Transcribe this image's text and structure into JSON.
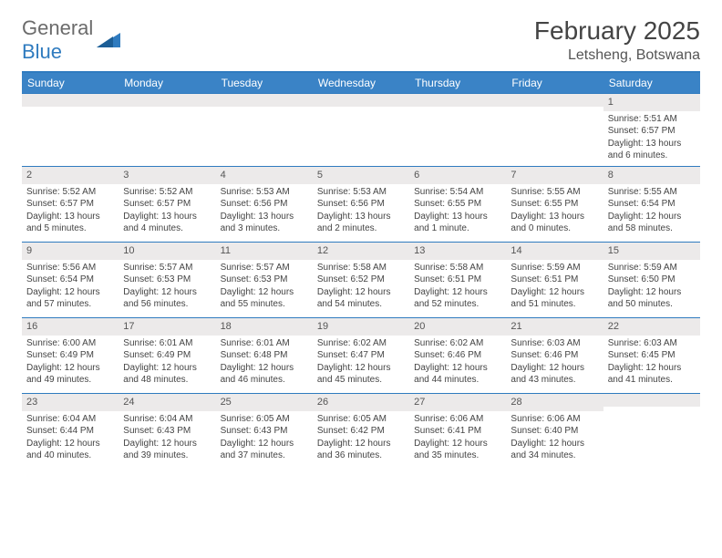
{
  "brand": {
    "name1": "General",
    "name2": "Blue"
  },
  "title": "February 2025",
  "location": "Letsheng, Botswana",
  "colors": {
    "header_bg": "#3a83c6",
    "border": "#2f7bbf",
    "daynum_bg": "#eceaea",
    "text": "#444444"
  },
  "day_names": [
    "Sunday",
    "Monday",
    "Tuesday",
    "Wednesday",
    "Thursday",
    "Friday",
    "Saturday"
  ],
  "weeks": [
    [
      null,
      null,
      null,
      null,
      null,
      null,
      {
        "n": "1",
        "sr": "Sunrise: 5:51 AM",
        "ss": "Sunset: 6:57 PM",
        "dl": "Daylight: 13 hours and 6 minutes."
      }
    ],
    [
      {
        "n": "2",
        "sr": "Sunrise: 5:52 AM",
        "ss": "Sunset: 6:57 PM",
        "dl": "Daylight: 13 hours and 5 minutes."
      },
      {
        "n": "3",
        "sr": "Sunrise: 5:52 AM",
        "ss": "Sunset: 6:57 PM",
        "dl": "Daylight: 13 hours and 4 minutes."
      },
      {
        "n": "4",
        "sr": "Sunrise: 5:53 AM",
        "ss": "Sunset: 6:56 PM",
        "dl": "Daylight: 13 hours and 3 minutes."
      },
      {
        "n": "5",
        "sr": "Sunrise: 5:53 AM",
        "ss": "Sunset: 6:56 PM",
        "dl": "Daylight: 13 hours and 2 minutes."
      },
      {
        "n": "6",
        "sr": "Sunrise: 5:54 AM",
        "ss": "Sunset: 6:55 PM",
        "dl": "Daylight: 13 hours and 1 minute."
      },
      {
        "n": "7",
        "sr": "Sunrise: 5:55 AM",
        "ss": "Sunset: 6:55 PM",
        "dl": "Daylight: 13 hours and 0 minutes."
      },
      {
        "n": "8",
        "sr": "Sunrise: 5:55 AM",
        "ss": "Sunset: 6:54 PM",
        "dl": "Daylight: 12 hours and 58 minutes."
      }
    ],
    [
      {
        "n": "9",
        "sr": "Sunrise: 5:56 AM",
        "ss": "Sunset: 6:54 PM",
        "dl": "Daylight: 12 hours and 57 minutes."
      },
      {
        "n": "10",
        "sr": "Sunrise: 5:57 AM",
        "ss": "Sunset: 6:53 PM",
        "dl": "Daylight: 12 hours and 56 minutes."
      },
      {
        "n": "11",
        "sr": "Sunrise: 5:57 AM",
        "ss": "Sunset: 6:53 PM",
        "dl": "Daylight: 12 hours and 55 minutes."
      },
      {
        "n": "12",
        "sr": "Sunrise: 5:58 AM",
        "ss": "Sunset: 6:52 PM",
        "dl": "Daylight: 12 hours and 54 minutes."
      },
      {
        "n": "13",
        "sr": "Sunrise: 5:58 AM",
        "ss": "Sunset: 6:51 PM",
        "dl": "Daylight: 12 hours and 52 minutes."
      },
      {
        "n": "14",
        "sr": "Sunrise: 5:59 AM",
        "ss": "Sunset: 6:51 PM",
        "dl": "Daylight: 12 hours and 51 minutes."
      },
      {
        "n": "15",
        "sr": "Sunrise: 5:59 AM",
        "ss": "Sunset: 6:50 PM",
        "dl": "Daylight: 12 hours and 50 minutes."
      }
    ],
    [
      {
        "n": "16",
        "sr": "Sunrise: 6:00 AM",
        "ss": "Sunset: 6:49 PM",
        "dl": "Daylight: 12 hours and 49 minutes."
      },
      {
        "n": "17",
        "sr": "Sunrise: 6:01 AM",
        "ss": "Sunset: 6:49 PM",
        "dl": "Daylight: 12 hours and 48 minutes."
      },
      {
        "n": "18",
        "sr": "Sunrise: 6:01 AM",
        "ss": "Sunset: 6:48 PM",
        "dl": "Daylight: 12 hours and 46 minutes."
      },
      {
        "n": "19",
        "sr": "Sunrise: 6:02 AM",
        "ss": "Sunset: 6:47 PM",
        "dl": "Daylight: 12 hours and 45 minutes."
      },
      {
        "n": "20",
        "sr": "Sunrise: 6:02 AM",
        "ss": "Sunset: 6:46 PM",
        "dl": "Daylight: 12 hours and 44 minutes."
      },
      {
        "n": "21",
        "sr": "Sunrise: 6:03 AM",
        "ss": "Sunset: 6:46 PM",
        "dl": "Daylight: 12 hours and 43 minutes."
      },
      {
        "n": "22",
        "sr": "Sunrise: 6:03 AM",
        "ss": "Sunset: 6:45 PM",
        "dl": "Daylight: 12 hours and 41 minutes."
      }
    ],
    [
      {
        "n": "23",
        "sr": "Sunrise: 6:04 AM",
        "ss": "Sunset: 6:44 PM",
        "dl": "Daylight: 12 hours and 40 minutes."
      },
      {
        "n": "24",
        "sr": "Sunrise: 6:04 AM",
        "ss": "Sunset: 6:43 PM",
        "dl": "Daylight: 12 hours and 39 minutes."
      },
      {
        "n": "25",
        "sr": "Sunrise: 6:05 AM",
        "ss": "Sunset: 6:43 PM",
        "dl": "Daylight: 12 hours and 37 minutes."
      },
      {
        "n": "26",
        "sr": "Sunrise: 6:05 AM",
        "ss": "Sunset: 6:42 PM",
        "dl": "Daylight: 12 hours and 36 minutes."
      },
      {
        "n": "27",
        "sr": "Sunrise: 6:06 AM",
        "ss": "Sunset: 6:41 PM",
        "dl": "Daylight: 12 hours and 35 minutes."
      },
      {
        "n": "28",
        "sr": "Sunrise: 6:06 AM",
        "ss": "Sunset: 6:40 PM",
        "dl": "Daylight: 12 hours and 34 minutes."
      },
      null
    ]
  ]
}
